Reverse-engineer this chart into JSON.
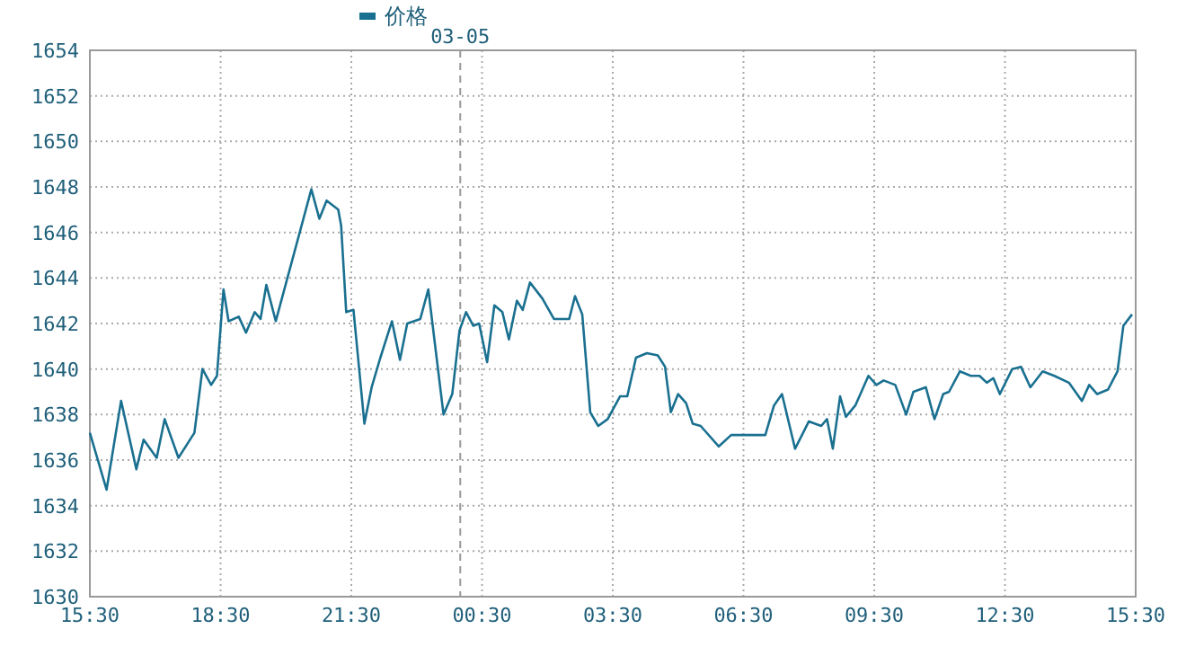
{
  "chart_data": {
    "type": "line",
    "x": [
      "--03-04T15:30",
      "--03-04T15:53",
      "--03-04T16:13",
      "--03-04T16:34",
      "--03-04T16:44",
      "--03-04T17:02",
      "--03-04T17:13",
      "--03-04T17:32",
      "--03-04T17:54",
      "--03-04T18:05",
      "--03-04T18:17",
      "--03-04T18:25",
      "--03-04T18:34",
      "--03-04T18:41",
      "--03-04T18:55",
      "--03-04T19:05",
      "--03-04T19:17",
      "--03-04T19:25",
      "--03-04T19:33",
      "--03-04T19:46",
      "--03-04T20:35",
      "--03-04T20:46",
      "--03-04T20:56",
      "--03-04T21:12",
      "--03-04T21:16",
      "--03-04T21:23",
      "--03-04T21:33",
      "--03-04T21:48",
      "--03-04T21:58",
      "--03-04T22:10",
      "--03-04T22:26",
      "--03-04T22:37",
      "--03-04T22:47",
      "--03-04T23:05",
      "--03-04T23:16",
      "--03-04T23:37",
      "--03-04T23:49",
      "--03-04T23:59",
      "--03-05T00:08",
      "--03-05T00:18",
      "--03-05T00:26",
      "--03-05T00:37",
      "--03-05T00:47",
      "--03-05T00:58",
      "--03-05T01:07",
      "--03-05T01:18",
      "--03-05T01:26",
      "--03-05T01:36",
      "--03-05T01:53",
      "--03-05T02:09",
      "--03-05T02:30",
      "--03-05T02:38",
      "--03-05T02:48",
      "--03-05T02:59",
      "--03-05T03:10",
      "--03-05T03:23",
      "--03-05T03:40",
      "--03-05T03:50",
      "--03-05T04:02",
      "--03-05T04:17",
      "--03-05T04:32",
      "--03-05T04:42",
      "--03-05T04:50",
      "--03-05T05:00",
      "--03-05T05:11",
      "--03-05T05:20",
      "--03-05T05:31",
      "--03-05T05:56",
      "--03-05T06:13",
      "--03-05T07:00",
      "--03-05T07:12",
      "--03-05T07:23",
      "--03-05T07:35",
      "--03-05T07:41",
      "--03-05T08:00",
      "--03-05T08:17",
      "--03-05T08:25",
      "--03-05T08:33",
      "--03-05T08:43",
      "--03-05T08:51",
      "--03-05T09:04",
      "--03-05T09:22",
      "--03-05T09:33",
      "--03-05T09:43",
      "--03-05T09:59",
      "--03-05T10:14",
      "--03-05T10:24",
      "--03-05T10:41",
      "--03-05T10:53",
      "--03-05T11:05",
      "--03-05T11:13",
      "--03-05T11:28",
      "--03-05T11:43",
      "--03-05T11:55",
      "--03-05T12:05",
      "--03-05T12:14",
      "--03-05T12:23",
      "--03-05T12:40",
      "--03-05T12:52",
      "--03-05T13:05",
      "--03-05T13:22",
      "--03-05T13:38",
      "--03-05T13:58",
      "--03-05T14:16",
      "--03-05T14:26",
      "--03-05T14:37",
      "--03-05T14:52",
      "--03-05T15:05",
      "--03-05T15:13",
      "--03-05T15:25"
    ],
    "series": [
      {
        "name": "价格",
        "color": "#1a7090",
        "values": [
          1637.2,
          1634.7,
          1638.6,
          1635.6,
          1636.9,
          1636.1,
          1637.8,
          1636.1,
          1637.2,
          1640.0,
          1639.3,
          1639.7,
          1643.5,
          1642.1,
          1642.3,
          1641.6,
          1642.5,
          1642.2,
          1643.7,
          1642.1,
          1647.9,
          1646.6,
          1647.4,
          1647.0,
          1646.3,
          1642.5,
          1642.6,
          1637.6,
          1639.2,
          1640.5,
          1642.1,
          1640.4,
          1642.0,
          1642.2,
          1643.5,
          1638.0,
          1638.9,
          1641.7,
          1642.5,
          1641.9,
          1642.0,
          1640.3,
          1642.8,
          1642.5,
          1641.3,
          1643.0,
          1642.6,
          1643.8,
          1643.1,
          1642.2,
          1642.2,
          1643.2,
          1642.4,
          1638.1,
          1637.5,
          1637.8,
          1638.8,
          1638.8,
          1640.5,
          1640.7,
          1640.6,
          1640.1,
          1638.1,
          1638.9,
          1638.5,
          1637.6,
          1637.5,
          1636.6,
          1637.1,
          1637.1,
          1638.4,
          1638.9,
          1637.3,
          1636.5,
          1637.7,
          1637.5,
          1637.8,
          1636.5,
          1638.8,
          1637.9,
          1638.4,
          1639.7,
          1639.3,
          1639.5,
          1639.3,
          1638.0,
          1639.0,
          1639.2,
          1637.8,
          1638.9,
          1639.0,
          1639.9,
          1639.7,
          1639.7,
          1639.4,
          1639.6,
          1638.9,
          1640.0,
          1640.1,
          1639.2,
          1639.9,
          1639.7,
          1639.4,
          1638.6,
          1639.3,
          1638.9,
          1639.1,
          1639.9,
          1641.9,
          1642.4
        ]
      }
    ],
    "xlim": [
      "--03-04T15:30",
      "--03-05T15:30"
    ],
    "xticks": [
      {
        "value": "--03-04T15:30",
        "label": "15:30"
      },
      {
        "value": "--03-04T18:30",
        "label": "18:30"
      },
      {
        "value": "--03-04T21:30",
        "label": "21:30"
      },
      {
        "value": "--03-05T00:30",
        "label": "00:30"
      },
      {
        "value": "--03-05T03:30",
        "label": "03:30"
      },
      {
        "value": "--03-05T06:30",
        "label": "06:30"
      },
      {
        "value": "--03-05T09:30",
        "label": "09:30"
      },
      {
        "value": "--03-05T12:30",
        "label": "12:30"
      },
      {
        "value": "--03-05T15:30",
        "label": "15:30"
      }
    ],
    "ylim": [
      1630,
      1654
    ],
    "yticks": [
      1630,
      1632,
      1634,
      1636,
      1638,
      1640,
      1642,
      1644,
      1646,
      1648,
      1650,
      1652,
      1654
    ],
    "grid": true,
    "legend": "top",
    "ref_lines": [
      {
        "axis": "x",
        "value": "--03-05",
        "label": "03-05",
        "line_style": "dashed"
      }
    ]
  }
}
